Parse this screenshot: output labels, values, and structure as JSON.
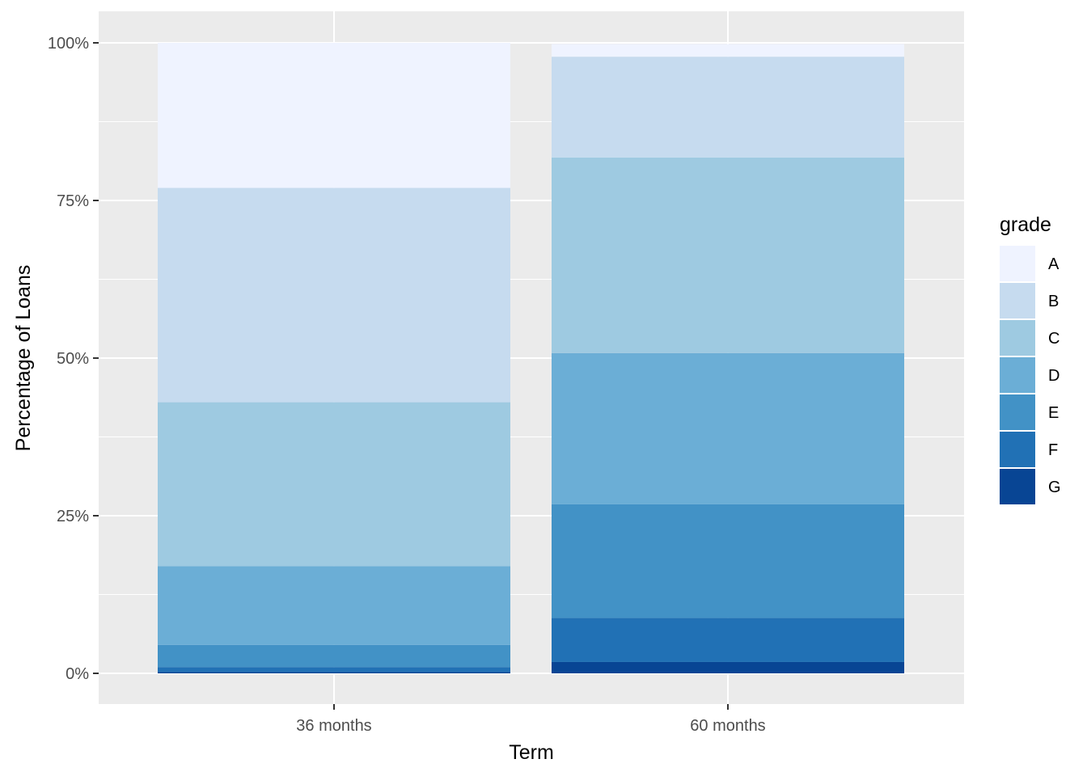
{
  "chart_data": {
    "type": "bar",
    "stacked": "percent",
    "title": "",
    "xlabel": "Term",
    "ylabel": "Percentage of Loans",
    "categories": [
      "36 months",
      "60 months"
    ],
    "ylim": [
      0,
      1
    ],
    "y_ticks": [
      0,
      0.25,
      0.5,
      0.75,
      1.0
    ],
    "y_tick_labels": [
      "0%",
      "25%",
      "50%",
      "75%",
      "100%"
    ],
    "legend_title": "grade",
    "legend_position": "right",
    "grid": true,
    "series": [
      {
        "name": "A",
        "color": "#EFF3FF",
        "values": [
          0.23,
          0.02
        ]
      },
      {
        "name": "B",
        "color": "#C6DBEF",
        "values": [
          0.34,
          0.16
        ]
      },
      {
        "name": "C",
        "color": "#9ECAE1",
        "values": [
          0.26,
          0.31
        ]
      },
      {
        "name": "D",
        "color": "#6BAED6",
        "values": [
          0.125,
          0.24
        ]
      },
      {
        "name": "E",
        "color": "#4292C6",
        "values": [
          0.035,
          0.18
        ]
      },
      {
        "name": "F",
        "color": "#2171B5",
        "values": [
          0.008,
          0.07
        ]
      },
      {
        "name": "G",
        "color": "#084594",
        "values": [
          0.002,
          0.018
        ]
      }
    ]
  }
}
